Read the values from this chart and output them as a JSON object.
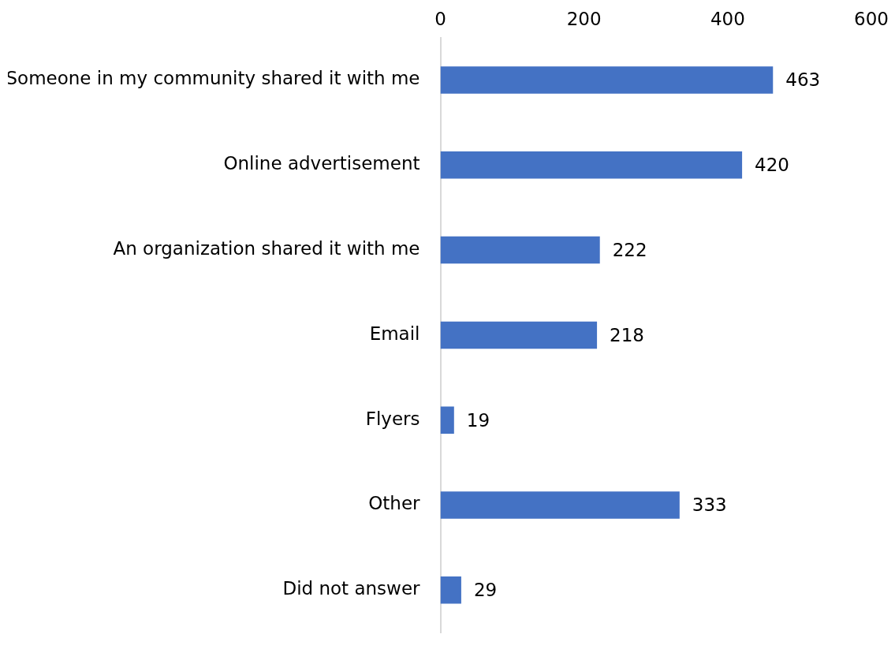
{
  "chart_data": {
    "type": "bar",
    "orientation": "horizontal",
    "categories": [
      "Someone in my community shared it with me",
      "Online advertisement",
      "An organization shared it with me",
      "Email",
      "Flyers",
      "Other",
      "Did not answer"
    ],
    "values": [
      463,
      420,
      222,
      218,
      19,
      333,
      29
    ],
    "color": "#4472c4",
    "xlim": [
      0,
      600
    ],
    "xticks": [
      0,
      200,
      400,
      600
    ],
    "data_labels": true
  }
}
